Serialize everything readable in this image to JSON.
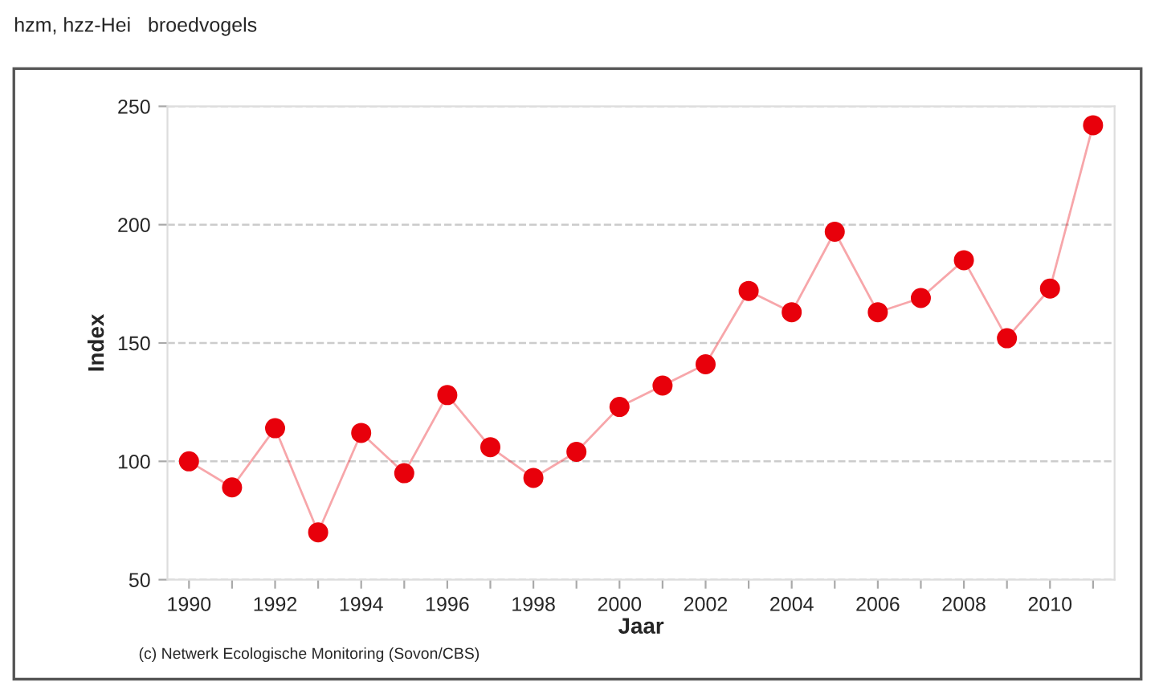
{
  "chart_data": {
    "type": "line",
    "title": "hzm, hzz-Hei   broedvogels",
    "xlabel": "Jaar",
    "ylabel": "Index",
    "x": [
      1990,
      1991,
      1992,
      1993,
      1994,
      1995,
      1996,
      1997,
      1998,
      1999,
      2000,
      2001,
      2002,
      2003,
      2004,
      2005,
      2006,
      2007,
      2008,
      2009,
      2010,
      2011
    ],
    "series": [
      {
        "color": "#e8000b",
        "values": [
          100,
          89,
          114,
          70,
          112,
          95,
          128,
          106,
          93,
          104,
          123,
          132,
          141,
          172,
          163,
          197,
          163,
          169,
          185,
          152,
          173,
          242
        ]
      }
    ],
    "xlim": [
      1989.5,
      2011.5
    ],
    "ylim": [
      50,
      250
    ],
    "xticks": [
      1990,
      {
        "value": 1991,
        "label": null
      },
      1992,
      {
        "value": 1993,
        "label": null
      },
      1994,
      {
        "value": 1995,
        "label": null
      },
      1996,
      {
        "value": 1997,
        "label": null
      },
      1998,
      {
        "value": 1999,
        "label": null
      },
      2000,
      {
        "value": 2001,
        "label": null
      },
      2002,
      {
        "value": 2003,
        "label": null
      },
      2004,
      {
        "value": 2005,
        "label": null
      },
      2006,
      {
        "value": 2007,
        "label": null
      },
      2008,
      {
        "value": 2009,
        "label": null
      },
      2010,
      {
        "value": 2011,
        "label": null
      }
    ],
    "yticks": [
      50,
      100,
      150,
      200,
      250
    ],
    "grid": "y",
    "marker": "circle",
    "line_style": "solid",
    "legend": false,
    "annotations": [
      "(c) Netwerk Ecologische Monitoring (Sovon/CBS)"
    ]
  }
}
